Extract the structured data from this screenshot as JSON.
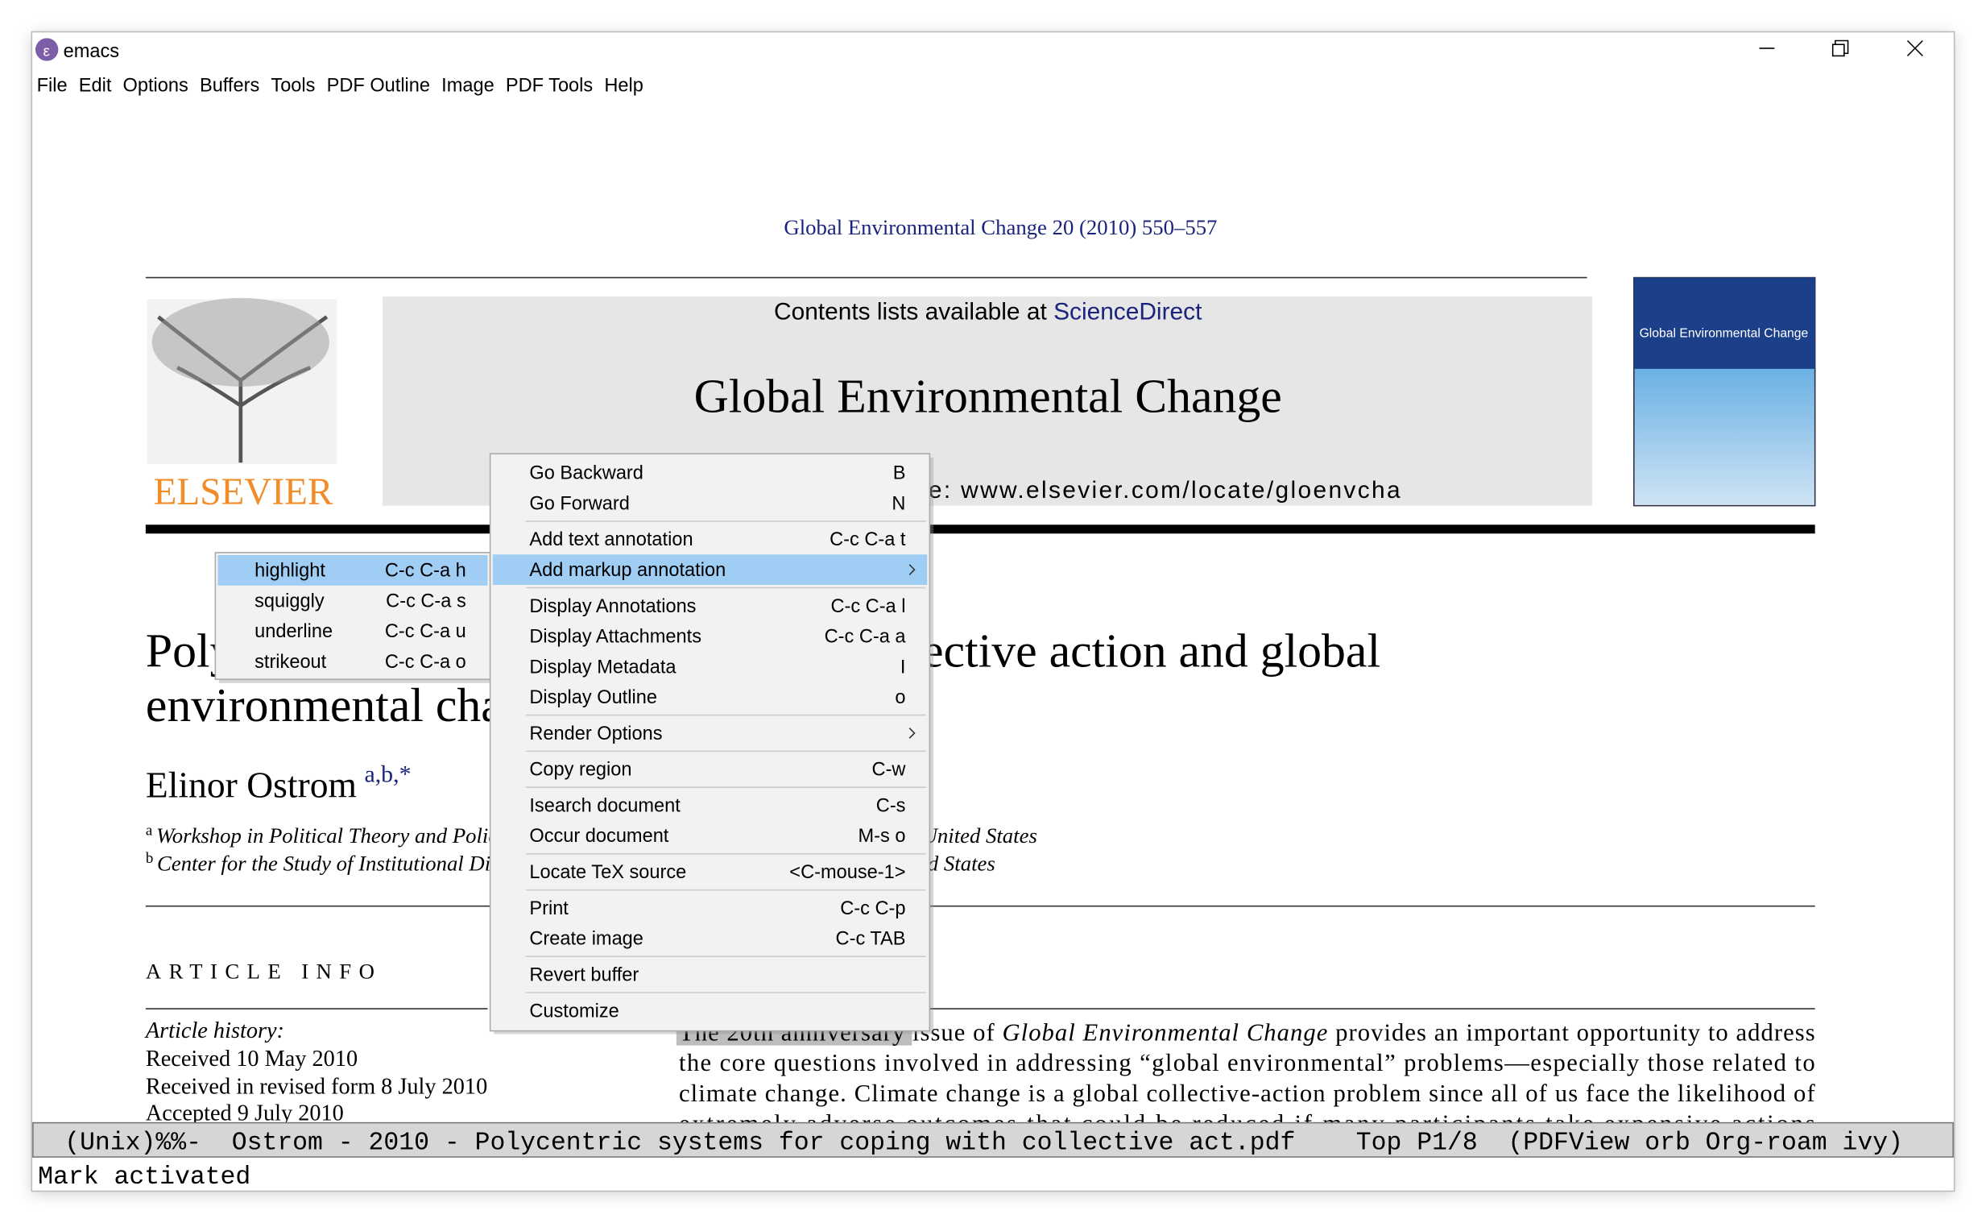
{
  "window": {
    "title": "emacs"
  },
  "menubar": [
    "File",
    "Edit",
    "Options",
    "Buffers",
    "Tools",
    "PDF Outline",
    "Image",
    "PDF Tools",
    "Help"
  ],
  "pdf": {
    "journal_ref": "Global Environmental Change 20 (2010) 550–557",
    "contents_prefix": "Contents lists available at",
    "contents_link": "ScienceDirect",
    "journal_name": "Global Environmental Change",
    "homepage": "journal homepage: www.elsevier.com/locate/gloenvcha",
    "publisher": "ELSEVIER",
    "cover_title": "Global Environmental Change",
    "title_lines": [
      "Polycentric systems for coping with collective action and global",
      "environmental change"
    ],
    "author": "Elinor Ostrom",
    "author_marks": "a,b,*",
    "affiliations": [
      {
        "mark": "a",
        "text": "Workshop in Political Theory and Policy Analysis, Indiana University, Bloomington, IN, United States"
      },
      {
        "mark": "b",
        "text": "Center for the Study of Institutional Diversity, Arizona State University, Tempe, AZ, United States"
      }
    ],
    "article_info": "ARTICLE INFO",
    "history_heading": "Article history:",
    "history": [
      "Received 10 May 2010",
      "Received in revised form 8 July 2010",
      "Accepted 9 July 2010"
    ],
    "abstract_first": [
      "The 20th anniversary issue of",
      "Global Environmental Change",
      "provides an important opportunity to address"
    ],
    "abstract_lines": [
      "the core questions involved in addressing “global environmental” problems—especially those related to",
      "climate change. Climate change is a global collective-action problem since all of us face the likelihood of",
      "extremely adverse outcomes that could be reduced if many participants take expensive actions"
    ]
  },
  "context_menu": {
    "groups": [
      [
        {
          "label": "Go Backward",
          "shortcut": "B"
        },
        {
          "label": "Go Forward",
          "shortcut": "N"
        }
      ],
      [
        {
          "label": "Add text annotation",
          "shortcut": "C-c C-a t"
        },
        {
          "label": "Add markup annotation",
          "has_submenu": true,
          "selected": true
        }
      ],
      [
        {
          "label": "Display Annotations",
          "shortcut": "C-c C-a l"
        },
        {
          "label": "Display Attachments",
          "shortcut": "C-c C-a a"
        },
        {
          "label": "Display Metadata",
          "shortcut": "I"
        },
        {
          "label": "Display Outline",
          "shortcut": "o"
        }
      ],
      [
        {
          "label": "Render Options",
          "has_submenu": true
        }
      ],
      [
        {
          "label": "Copy region",
          "shortcut": "C-w"
        }
      ],
      [
        {
          "label": "Isearch document",
          "shortcut": "C-s"
        },
        {
          "label": "Occur document",
          "shortcut": "M-s o"
        }
      ],
      [
        {
          "label": "Locate TeX source",
          "shortcut": "<C-mouse-1>"
        }
      ],
      [
        {
          "label": "Print",
          "shortcut": "C-c C-p"
        },
        {
          "label": "Create image",
          "shortcut": "C-c TAB"
        }
      ],
      [
        {
          "label": "Revert buffer"
        }
      ],
      [
        {
          "label": "Customize"
        }
      ]
    ]
  },
  "submenu": [
    {
      "label": "highlight",
      "shortcut": "C-c C-a h",
      "selected": true
    },
    {
      "label": "squiggly",
      "shortcut": "C-c C-a s"
    },
    {
      "label": "underline",
      "shortcut": "C-c C-a u"
    },
    {
      "label": "strikeout",
      "shortcut": "C-c C-a o"
    }
  ],
  "mode_line": "(Unix)%%-  Ostrom - 2010 - Polycentric systems for coping with collective act.pdf    Top P1/8  (PDFView orb Org-roam ivy)",
  "echo_area": "Mark activated"
}
